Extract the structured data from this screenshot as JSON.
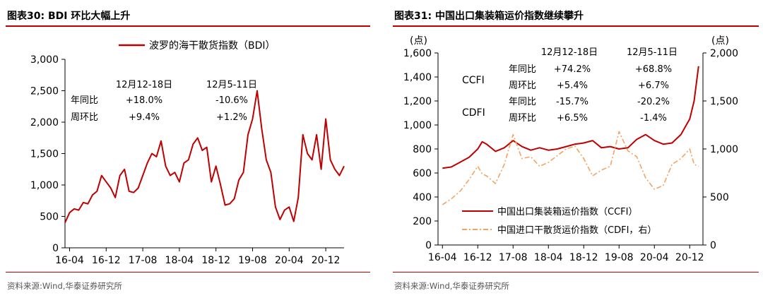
{
  "left": {
    "title": "图表30:  BDI 环比大幅上升",
    "source": "资料来源:Wind,华泰证券研究所",
    "chart_data": {
      "type": "line",
      "series": [
        {
          "name": "波罗的海干散货指数（BDI）",
          "color": "#c00000",
          "points": [
            [
              "2016-03",
              400
            ],
            [
              "2016-04",
              560
            ],
            [
              "2016-05",
              620
            ],
            [
              "2016-06",
              600
            ],
            [
              "2016-07",
              720
            ],
            [
              "2016-08",
              700
            ],
            [
              "2016-09",
              840
            ],
            [
              "2016-10",
              900
            ],
            [
              "2016-11",
              1150
            ],
            [
              "2016-12",
              1050
            ],
            [
              "2017-01",
              950
            ],
            [
              "2017-02",
              800
            ],
            [
              "2017-03",
              1150
            ],
            [
              "2017-04",
              1250
            ],
            [
              "2017-05",
              900
            ],
            [
              "2017-06",
              880
            ],
            [
              "2017-07",
              950
            ],
            [
              "2017-08",
              1150
            ],
            [
              "2017-09",
              1350
            ],
            [
              "2017-10",
              1500
            ],
            [
              "2017-11",
              1450
            ],
            [
              "2017-12",
              1700
            ],
            [
              "2018-01",
              1300
            ],
            [
              "2018-02",
              1150
            ],
            [
              "2018-03",
              1200
            ],
            [
              "2018-04",
              1050
            ],
            [
              "2018-05",
              1350
            ],
            [
              "2018-06",
              1400
            ],
            [
              "2018-07",
              1650
            ],
            [
              "2018-08",
              1750
            ],
            [
              "2018-09",
              1550
            ],
            [
              "2018-10",
              1600
            ],
            [
              "2018-11",
              1050
            ],
            [
              "2018-12",
              1300
            ],
            [
              "2019-01",
              1000
            ],
            [
              "2019-02",
              680
            ],
            [
              "2019-03",
              700
            ],
            [
              "2019-04",
              780
            ],
            [
              "2019-05",
              1080
            ],
            [
              "2019-06",
              1200
            ],
            [
              "2019-07",
              1800
            ],
            [
              "2019-08",
              2050
            ],
            [
              "2019-09",
              2500
            ],
            [
              "2019-10",
              1900
            ],
            [
              "2019-11",
              1400
            ],
            [
              "2019-12",
              1200
            ],
            [
              "2020-01",
              650
            ],
            [
              "2020-02",
              450
            ],
            [
              "2020-03",
              600
            ],
            [
              "2020-04",
              650
            ],
            [
              "2020-05",
              420
            ],
            [
              "2020-06",
              800
            ],
            [
              "2020-07",
              1800
            ],
            [
              "2020-08",
              1500
            ],
            [
              "2020-09",
              1400
            ],
            [
              "2020-10",
              1800
            ],
            [
              "2020-11",
              1250
            ],
            [
              "2020-12",
              2050
            ],
            [
              "2021-01",
              1400
            ],
            [
              "2021-02",
              1250
            ],
            [
              "2021-03",
              1150
            ],
            [
              "2021-04",
              1300
            ]
          ]
        }
      ],
      "x_ticks": [
        "16-04",
        "16-12",
        "17-08",
        "18-04",
        "18-12",
        "19-08",
        "20-04",
        "20-12"
      ],
      "x_tick_dates": [
        "2016-04",
        "2016-12",
        "2017-08",
        "2018-04",
        "2018-12",
        "2019-08",
        "2020-04",
        "2020-12"
      ],
      "ylim": [
        0,
        3000
      ],
      "y_ticks": [
        0,
        500,
        1000,
        1500,
        2000,
        2500,
        3000
      ],
      "y_tick_labels": [
        "0",
        "500",
        "1,000",
        "1,500",
        "2,000",
        "2,500",
        "3,000"
      ],
      "legend_position": "top",
      "annotation": {
        "headers": [
          "12月12-18日",
          "12月5-11日"
        ],
        "rows": [
          {
            "label": "年同比",
            "v1": "+18.0%",
            "v2": "-10.6%"
          },
          {
            "label": "周环比",
            "v1": "+9.4%",
            "v2": "+1.2%"
          }
        ]
      }
    }
  },
  "right": {
    "title": "图表31:  中国出口集装箱运价指数继续攀升",
    "source": "资料来源:Wind,华泰证券研究所",
    "chart_data": {
      "type": "line",
      "left_unit": "(点)",
      "right_unit": "(点)",
      "ylim_left": [
        0,
        1600
      ],
      "y_ticks_left": [
        0,
        200,
        400,
        600,
        800,
        1000,
        1200,
        1400,
        1600
      ],
      "y_tick_labels_left": [
        "0",
        "200",
        "400",
        "600",
        "800",
        "1,000",
        "1,200",
        "1,400",
        "1,600"
      ],
      "ylim_right": [
        0,
        2000
      ],
      "y_ticks_right": [
        0,
        500,
        1000,
        1500,
        2000
      ],
      "y_tick_labels_right": [
        "0",
        "500",
        "1,000",
        "1,500",
        "2,000"
      ],
      "x_ticks": [
        "16-04",
        "16-12",
        "17-08",
        "18-04",
        "18-12",
        "19-08",
        "20-04",
        "20-12"
      ],
      "x_tick_dates": [
        "2016-04",
        "2016-12",
        "2017-08",
        "2018-04",
        "2018-12",
        "2019-08",
        "2020-04",
        "2020-12"
      ],
      "legend_position": "bottom-left",
      "series": [
        {
          "name": "中国出口集装箱运价指数（CCFI）",
          "axis": "left",
          "color": "#c00000",
          "style": "solid",
          "points": [
            [
              "2016-04",
              640
            ],
            [
              "2016-06",
              650
            ],
            [
              "2016-08",
              690
            ],
            [
              "2016-10",
              730
            ],
            [
              "2016-12",
              800
            ],
            [
              "2017-01",
              860
            ],
            [
              "2017-02",
              840
            ],
            [
              "2017-04",
              780
            ],
            [
              "2017-06",
              810
            ],
            [
              "2017-08",
              870
            ],
            [
              "2017-10",
              820
            ],
            [
              "2017-12",
              790
            ],
            [
              "2018-02",
              810
            ],
            [
              "2018-04",
              790
            ],
            [
              "2018-06",
              800
            ],
            [
              "2018-08",
              820
            ],
            [
              "2018-10",
              840
            ],
            [
              "2018-12",
              850
            ],
            [
              "2019-02",
              870
            ],
            [
              "2019-04",
              810
            ],
            [
              "2019-06",
              820
            ],
            [
              "2019-08",
              800
            ],
            [
              "2019-10",
              810
            ],
            [
              "2019-12",
              880
            ],
            [
              "2020-02",
              920
            ],
            [
              "2020-04",
              870
            ],
            [
              "2020-06",
              840
            ],
            [
              "2020-08",
              850
            ],
            [
              "2020-10",
              920
            ],
            [
              "2020-12",
              1050
            ],
            [
              "2021-01",
              1200
            ],
            [
              "2021-02",
              1490
            ]
          ]
        },
        {
          "name": "中国进口干散货运价指数（CDFI，右）",
          "axis": "right",
          "color": "#f4a460",
          "style": "dashdot",
          "points": [
            [
              "2016-04",
              420
            ],
            [
              "2016-06",
              480
            ],
            [
              "2016-08",
              560
            ],
            [
              "2016-10",
              680
            ],
            [
              "2016-12",
              820
            ],
            [
              "2017-01",
              740
            ],
            [
              "2017-02",
              720
            ],
            [
              "2017-04",
              640
            ],
            [
              "2017-06",
              840
            ],
            [
              "2017-08",
              1150
            ],
            [
              "2017-10",
              900
            ],
            [
              "2017-12",
              920
            ],
            [
              "2018-02",
              820
            ],
            [
              "2018-04",
              860
            ],
            [
              "2018-06",
              930
            ],
            [
              "2018-08",
              1000
            ],
            [
              "2018-10",
              1030
            ],
            [
              "2018-12",
              900
            ],
            [
              "2019-02",
              720
            ],
            [
              "2019-04",
              780
            ],
            [
              "2019-06",
              820
            ],
            [
              "2019-08",
              1180
            ],
            [
              "2019-10",
              980
            ],
            [
              "2019-12",
              920
            ],
            [
              "2020-02",
              700
            ],
            [
              "2020-04",
              580
            ],
            [
              "2020-06",
              620
            ],
            [
              "2020-08",
              840
            ],
            [
              "2020-10",
              900
            ],
            [
              "2020-12",
              1000
            ],
            [
              "2021-01",
              840
            ],
            [
              "2021-02",
              820
            ]
          ]
        }
      ],
      "annotation": {
        "headers": [
          "12月12-18日",
          "12月5-11日"
        ],
        "groups": [
          {
            "name": "CCFI",
            "rows": [
              {
                "label": "年同比",
                "v1": "+74.2%",
                "v2": "+68.8%"
              },
              {
                "label": "周环比",
                "v1": "+5.4%",
                "v2": "+6.7%"
              }
            ]
          },
          {
            "name": "CDFI",
            "rows": [
              {
                "label": "年同比",
                "v1": "-15.7%",
                "v2": "-20.2%"
              },
              {
                "label": "周环比",
                "v1": "+6.5%",
                "v2": "-1.4%"
              }
            ]
          }
        ]
      }
    }
  }
}
